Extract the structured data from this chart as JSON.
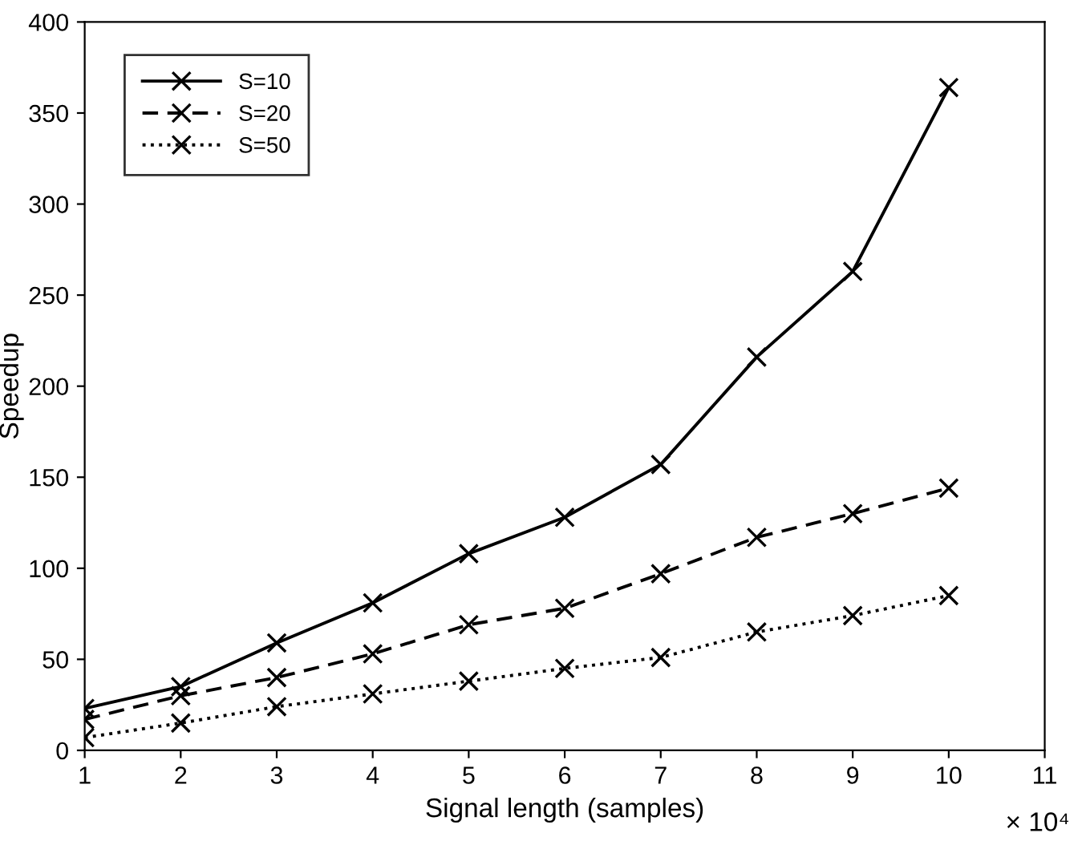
{
  "chart_data": {
    "type": "line",
    "xlabel": "Signal length (samples)",
    "ylabel": "Speedup",
    "annotations": [
      "× 10⁴"
    ],
    "x": [
      1,
      2,
      3,
      4,
      5,
      6,
      7,
      8,
      9,
      10
    ],
    "series": [
      {
        "name": "S=10",
        "color": "#000000",
        "line_style": "solid",
        "values": [
          23,
          35,
          59,
          81,
          108,
          128,
          157,
          216,
          263,
          364
        ]
      },
      {
        "name": "S=20",
        "color": "#000000",
        "line_style": "dashed",
        "values": [
          17,
          30,
          40,
          53,
          69,
          78,
          97,
          117,
          130,
          144
        ]
      },
      {
        "name": "S=50",
        "color": "#000000",
        "line_style": "dotted",
        "values": [
          7,
          15,
          24,
          31,
          38,
          45,
          51,
          65,
          74,
          85
        ]
      }
    ],
    "xlim": [
      1,
      11
    ],
    "xticks": [
      1,
      2,
      3,
      4,
      5,
      6,
      7,
      8,
      9,
      10,
      11
    ],
    "ylim": [
      0,
      400
    ],
    "yticks": [
      0,
      50,
      100,
      150,
      200,
      250,
      300,
      350,
      400
    ],
    "marker": "cross",
    "grid": false,
    "legend": "top left"
  }
}
